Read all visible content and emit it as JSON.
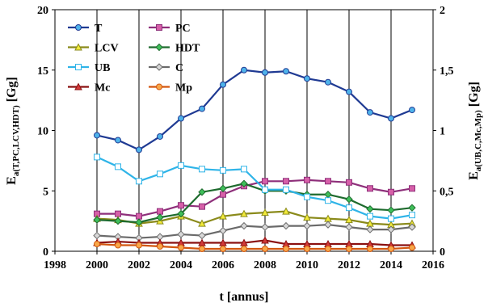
{
  "chart_data": {
    "type": "line",
    "x": [
      2000,
      2001,
      2002,
      2003,
      2004,
      2005,
      2006,
      2007,
      2008,
      2009,
      2010,
      2011,
      2012,
      2013,
      2014,
      2015
    ],
    "xlabel": "t [annus]",
    "ylabel_left": {
      "main": "E",
      "sub": "a(T,PC,LCV,HDT)",
      "unit": " [Gg]"
    },
    "ylabel_right": {
      "main": "E",
      "sub": "a(UB,C,Mc,Mp)",
      "unit": " [Gg]"
    },
    "xlim": [
      1998,
      2016
    ],
    "ylim_left": [
      0,
      20
    ],
    "ylim_right": [
      0,
      2
    ],
    "x_ticks": [
      "1998",
      "2000",
      "2002",
      "2004",
      "2006",
      "2008",
      "2010",
      "2012",
      "2014",
      "2016"
    ],
    "y_left_ticks": [
      "0",
      "5",
      "10",
      "15",
      "20"
    ],
    "y_right_ticks": [
      "0",
      "0,5",
      "1",
      "1,5",
      "2"
    ],
    "grid": "vertical",
    "legend_position": "top-left",
    "series": [
      {
        "name": "T",
        "axis": "left",
        "color": "#1f3a93",
        "marker": "circle",
        "marker_fill": "#4fb3ea",
        "values": [
          9.6,
          9.2,
          8.4,
          9.5,
          11.0,
          11.8,
          13.8,
          15.0,
          14.8,
          14.9,
          14.3,
          14.0,
          13.2,
          11.5,
          11.0,
          11.7
        ]
      },
      {
        "name": "PC",
        "axis": "left",
        "color": "#8e2f7a",
        "marker": "square",
        "marker_fill": "#d65fa8",
        "values": [
          3.1,
          3.1,
          2.9,
          3.3,
          3.8,
          3.7,
          4.7,
          5.4,
          5.8,
          5.8,
          5.9,
          5.8,
          5.7,
          5.2,
          4.9,
          5.2
        ]
      },
      {
        "name": "LCV",
        "axis": "left",
        "color": "#8a8a1a",
        "marker": "triangle",
        "marker_fill": "#f2ea3a",
        "values": [
          2.7,
          2.6,
          2.3,
          2.5,
          2.9,
          2.3,
          2.9,
          3.1,
          3.2,
          3.3,
          2.8,
          2.7,
          2.6,
          2.3,
          2.2,
          2.3
        ]
      },
      {
        "name": "HDT",
        "axis": "left",
        "color": "#1e6b2e",
        "marker": "diamond",
        "marker_fill": "#3fbf5a",
        "values": [
          2.6,
          2.5,
          2.4,
          2.8,
          3.1,
          4.9,
          5.2,
          5.6,
          5.0,
          5.0,
          4.7,
          4.7,
          4.3,
          3.5,
          3.4,
          3.6
        ]
      },
      {
        "name": "UB",
        "axis": "right",
        "color": "#2fb4e8",
        "marker": "square",
        "marker_fill": "#ffffff",
        "values": [
          0.78,
          0.7,
          0.58,
          0.64,
          0.71,
          0.68,
          0.67,
          0.68,
          0.51,
          0.51,
          0.45,
          0.42,
          0.36,
          0.29,
          0.27,
          0.3
        ]
      },
      {
        "name": "C",
        "axis": "right",
        "color": "#6a6a6a",
        "marker": "diamond",
        "marker_fill": "#d8d8d8",
        "values": [
          0.13,
          0.12,
          0.11,
          0.12,
          0.14,
          0.13,
          0.17,
          0.21,
          0.2,
          0.21,
          0.21,
          0.22,
          0.2,
          0.18,
          0.18,
          0.2
        ]
      },
      {
        "name": "Mc",
        "axis": "right",
        "color": "#8b1010",
        "marker": "triangle",
        "marker_fill": "#d23a3a",
        "values": [
          0.07,
          0.08,
          0.07,
          0.07,
          0.07,
          0.07,
          0.07,
          0.07,
          0.09,
          0.06,
          0.06,
          0.06,
          0.06,
          0.06,
          0.05,
          0.05
        ]
      },
      {
        "name": "Mp",
        "axis": "right",
        "color": "#d3560f",
        "marker": "circle",
        "marker_fill": "#f7a84a",
        "values": [
          0.06,
          0.05,
          0.05,
          0.04,
          0.03,
          0.02,
          0.02,
          0.02,
          0.02,
          0.02,
          0.02,
          0.02,
          0.02,
          0.02,
          0.02,
          0.03
        ]
      }
    ]
  }
}
